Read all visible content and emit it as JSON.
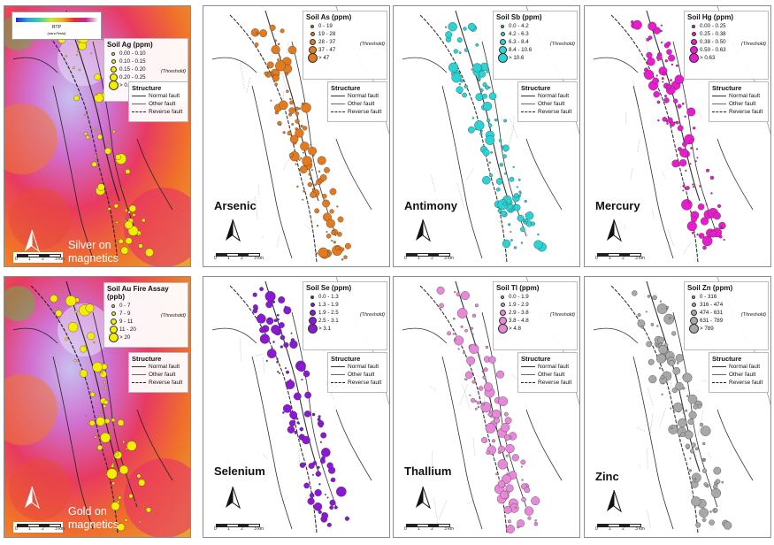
{
  "colors": {
    "silver": "#f4ee00",
    "gold": "#f4ee00",
    "arsenic": "#e47a1e",
    "antimony": "#2ad4d4",
    "mercury": "#e81ccc",
    "selenium": "#8a18d4",
    "thallium": "#e888d8",
    "zinc": "#a8a8a8"
  },
  "structure": {
    "title": "Structure",
    "normal": "Normal fault",
    "other": "Other fault",
    "reverse": "Reverse fault"
  },
  "scale": [
    "0",
    "1",
    "2",
    "3 km"
  ],
  "colorbar": {
    "label": "RTP",
    "unit": "(nanoTesla)"
  },
  "panels": [
    {
      "key": "silver",
      "title": "Soil Ag (ppm)",
      "ranges": [
        "0.00 - 0.10",
        "0.10 - 0.15",
        "0.15 - 0.20",
        "0.20 - 0.25",
        "> 0.25"
      ],
      "threshold": "(Threshold)",
      "name": [
        "Silver on",
        "magnetics"
      ]
    },
    {
      "key": "arsenic",
      "title": "Soil As (ppm)",
      "ranges": [
        "0 - 19",
        "19 - 28",
        "28 - 37",
        "37 - 47",
        "> 47"
      ],
      "threshold": "(Threshold)",
      "name": [
        "Arsenic"
      ]
    },
    {
      "key": "antimony",
      "title": "Soil Sb (ppm)",
      "ranges": [
        "0.0 - 4.2",
        "4.2 - 6.3",
        "6.3 - 8.4",
        "8.4 - 10.6",
        "> 10.6"
      ],
      "threshold": "(Threshold)",
      "name": [
        "Antimony"
      ]
    },
    {
      "key": "mercury",
      "title": "Soil Hg (ppm)",
      "ranges": [
        "0.00 - 0.25",
        "0.25 - 0.38",
        "0.38 - 0.50",
        "0.50 - 0.63",
        "> 0.63"
      ],
      "threshold": "(Threshold)",
      "name": [
        "Mercury"
      ]
    },
    {
      "key": "gold",
      "title": "Soil Au Fire Assay (ppb)",
      "ranges": [
        "0 - 7",
        "7 - 9",
        "9 - 11",
        "11 - 20",
        "> 20"
      ],
      "threshold": "(Threshold)",
      "name": [
        "Gold on",
        "magnetics"
      ]
    },
    {
      "key": "selenium",
      "title": "Soil Se (ppm)",
      "ranges": [
        "0.0 - 1.3",
        "1.3 - 1.9",
        "1.9 - 2.5",
        "2.5 - 3.1",
        "> 3.1"
      ],
      "threshold": "(Threshold)",
      "name": [
        "Selenium"
      ]
    },
    {
      "key": "thallium",
      "title": "Soil Tl (ppm)",
      "ranges": [
        "0.0 - 1.9",
        "1.9 - 2.9",
        "2.9 - 3.8",
        "3.8 - 4.8",
        "> 4.8"
      ],
      "threshold": "(Threshold)",
      "name": [
        "Thallium"
      ]
    },
    {
      "key": "zinc",
      "title": "Soil Zn (ppm)",
      "ranges": [
        "0 - 316",
        "316 - 474",
        "474 - 631",
        "631 - 789",
        "> 789"
      ],
      "threshold": "(Threshold)",
      "name": [
        "Zinc"
      ]
    }
  ]
}
